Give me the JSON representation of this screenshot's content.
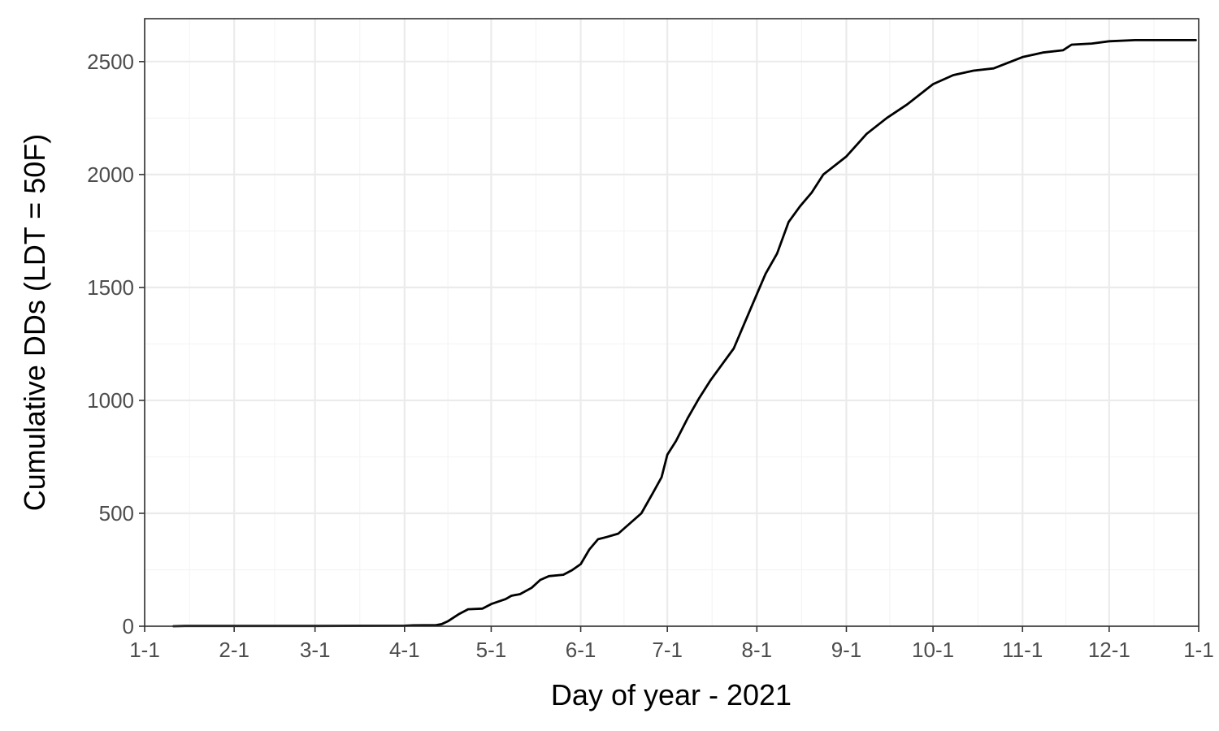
{
  "chart_data": {
    "type": "line",
    "title": "",
    "xlabel": "Day of year - 2021",
    "ylabel": "Cumulative DDs (LDT = 50F)",
    "x_ticks": [
      "1-1",
      "2-1",
      "3-1",
      "4-1",
      "5-1",
      "6-1",
      "7-1",
      "8-1",
      "9-1",
      "10-1",
      "11-1",
      "12-1",
      "1-1"
    ],
    "x_tick_dates": [
      "2021-01-01",
      "2021-02-01",
      "2021-03-01",
      "2021-04-01",
      "2021-05-01",
      "2021-06-01",
      "2021-07-01",
      "2021-08-01",
      "2021-09-01",
      "2021-10-01",
      "2021-11-01",
      "2021-12-01",
      "2022-01-01"
    ],
    "xlim": [
      "2021-01-01",
      "2022-01-01"
    ],
    "y_ticks": [
      0,
      500,
      1000,
      1500,
      2000,
      2500
    ],
    "ylim": [
      0,
      2690
    ],
    "grid": true,
    "legend": "none",
    "series": [
      {
        "color": "#000000",
        "points": [
          [
            "2021-01-11",
            0
          ],
          [
            "2021-01-15",
            1
          ],
          [
            "2021-02-01",
            1
          ],
          [
            "2021-03-01",
            1
          ],
          [
            "2021-04-01",
            2
          ],
          [
            "2021-04-04",
            4
          ],
          [
            "2021-04-12",
            5
          ],
          [
            "2021-04-14",
            10
          ],
          [
            "2021-04-16",
            22
          ],
          [
            "2021-04-20",
            55
          ],
          [
            "2021-04-23",
            75
          ],
          [
            "2021-04-28",
            78
          ],
          [
            "2021-05-01",
            98
          ],
          [
            "2021-05-06",
            120
          ],
          [
            "2021-05-08",
            135
          ],
          [
            "2021-05-11",
            142
          ],
          [
            "2021-05-15",
            170
          ],
          [
            "2021-05-18",
            205
          ],
          [
            "2021-05-21",
            222
          ],
          [
            "2021-05-26",
            228
          ],
          [
            "2021-05-29",
            248
          ],
          [
            "2021-06-01",
            275
          ],
          [
            "2021-06-04",
            340
          ],
          [
            "2021-06-07",
            385
          ],
          [
            "2021-06-10",
            395
          ],
          [
            "2021-06-14",
            410
          ],
          [
            "2021-06-18",
            455
          ],
          [
            "2021-06-22",
            500
          ],
          [
            "2021-06-26",
            590
          ],
          [
            "2021-06-29",
            660
          ],
          [
            "2021-07-01",
            760
          ],
          [
            "2021-07-04",
            820
          ],
          [
            "2021-07-08",
            920
          ],
          [
            "2021-07-12",
            1010
          ],
          [
            "2021-07-16",
            1090
          ],
          [
            "2021-07-20",
            1160
          ],
          [
            "2021-07-24",
            1230
          ],
          [
            "2021-07-28",
            1350
          ],
          [
            "2021-08-01",
            1470
          ],
          [
            "2021-08-04",
            1560
          ],
          [
            "2021-08-08",
            1650
          ],
          [
            "2021-08-12",
            1790
          ],
          [
            "2021-08-16",
            1860
          ],
          [
            "2021-08-20",
            1920
          ],
          [
            "2021-08-24",
            2000
          ],
          [
            "2021-09-01",
            2080
          ],
          [
            "2021-09-08",
            2180
          ],
          [
            "2021-09-15",
            2250
          ],
          [
            "2021-09-22",
            2310
          ],
          [
            "2021-10-01",
            2400
          ],
          [
            "2021-10-08",
            2440
          ],
          [
            "2021-10-15",
            2460
          ],
          [
            "2021-10-22",
            2470
          ],
          [
            "2021-11-01",
            2520
          ],
          [
            "2021-11-08",
            2540
          ],
          [
            "2021-11-15",
            2550
          ],
          [
            "2021-11-18",
            2575
          ],
          [
            "2021-11-25",
            2580
          ],
          [
            "2021-12-01",
            2590
          ],
          [
            "2021-12-10",
            2595
          ],
          [
            "2021-12-31",
            2595
          ]
        ]
      }
    ]
  }
}
